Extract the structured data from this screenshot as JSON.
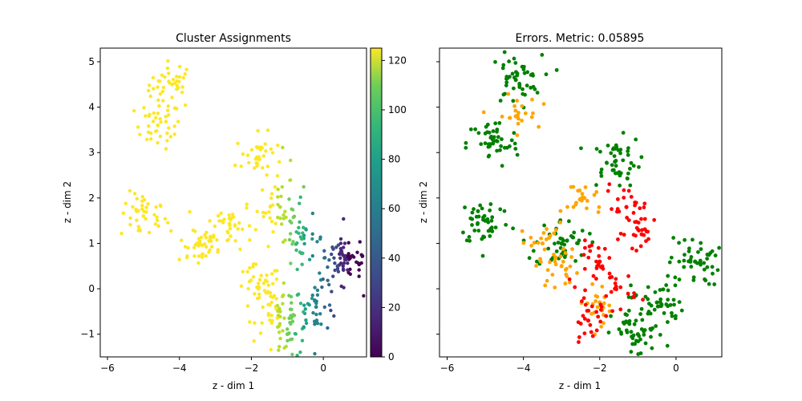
{
  "chart_data": [
    {
      "type": "scatter",
      "title": "Cluster Assignments",
      "xlabel": "z - dim 1",
      "ylabel": "z - dim 2",
      "xlim": [
        -6.2,
        1.2
      ],
      "ylim": [
        -1.5,
        5.3
      ],
      "xticks": [
        "−6",
        "−4",
        "−2",
        "0"
      ],
      "yticks": [
        "−1",
        "0",
        "1",
        "2",
        "3",
        "4",
        "5"
      ],
      "colormap": "viridis",
      "colorbar": {
        "min": 0,
        "max": 125,
        "ticks": [
          "0",
          "20",
          "40",
          "60",
          "80",
          "100",
          "120"
        ]
      },
      "series": [
        {
          "values": [
            [
              -4.2,
              4.5
            ],
            [
              -4.6,
              3.6
            ],
            [
              -5.0,
              1.6
            ],
            [
              -3.5,
              1.0
            ],
            [
              -2.6,
              1.4
            ],
            [
              -1.8,
              2.9
            ],
            [
              -1.2,
              1.8
            ],
            [
              -0.6,
              1.1
            ],
            [
              0.4,
              0.5
            ],
            [
              0.7,
              0.7
            ],
            [
              -1.8,
              0.0
            ],
            [
              -1.2,
              -0.5
            ],
            [
              -0.2,
              -0.4
            ],
            [
              -1.0,
              -1.0
            ]
          ]
        }
      ]
    },
    {
      "type": "scatter",
      "title": "Errors. Metric: 0.05895",
      "xlabel": "z - dim 1",
      "ylabel": "z - dim 2",
      "xlim": [
        -6.2,
        1.2
      ],
      "ylim": [
        -1.5,
        5.3
      ],
      "xticks": [
        "−6",
        "−4",
        "−2",
        "0"
      ],
      "legend": "none",
      "colors": {
        "correct": "#008000",
        "partial": "#ffa500",
        "wrong": "#ff0000"
      },
      "series": [
        {
          "color": "#008000",
          "values": [
            [
              -4.2,
              4.6
            ],
            [
              -4.8,
              3.2
            ],
            [
              -5.0,
              1.5
            ],
            [
              -3.0,
              1.0
            ],
            [
              -1.6,
              2.8
            ],
            [
              0.5,
              0.6
            ],
            [
              -0.5,
              -0.3
            ],
            [
              -1.0,
              -1.0
            ]
          ]
        },
        {
          "color": "#ffa500",
          "values": [
            [
              -2.4,
              2.0
            ],
            [
              -3.5,
              1.0
            ],
            [
              -3.0,
              0.5
            ],
            [
              -4.2,
              3.8
            ],
            [
              -2.0,
              -0.3
            ]
          ]
        },
        {
          "color": "#ff0000",
          "values": [
            [
              -1.3,
              1.8
            ],
            [
              -0.9,
              1.2
            ],
            [
              -2.0,
              0.6
            ],
            [
              -1.6,
              0.0
            ],
            [
              -2.3,
              -0.7
            ]
          ]
        }
      ]
    }
  ]
}
